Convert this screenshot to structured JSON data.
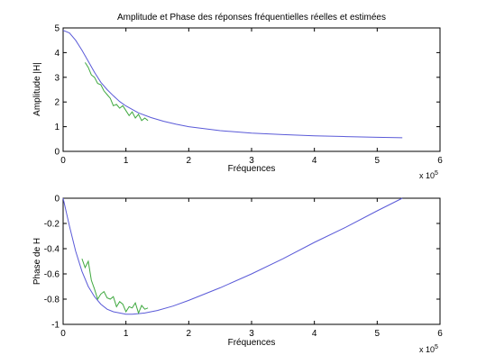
{
  "chart_data": [
    {
      "type": "line",
      "title": "Amplitude et Phase des réponses fréquentielles réelles et estimées",
      "xlabel": "Fréquences",
      "ylabel": "Amplitude |H|",
      "x_multiplier": "x 10",
      "x_multiplier_exp": "5",
      "xlim": [
        0,
        6
      ],
      "ylim": [
        0,
        5
      ],
      "xticks": [
        "0",
        "1",
        "2",
        "3",
        "4",
        "5",
        "6"
      ],
      "yticks": [
        "0",
        "1",
        "2",
        "3",
        "4",
        "5"
      ],
      "grid": false,
      "series": [
        {
          "color": "#5a5ad8",
          "x": [
            0,
            0.1,
            0.2,
            0.3,
            0.4,
            0.5,
            0.6,
            0.7,
            0.8,
            0.9,
            1.0,
            1.2,
            1.4,
            1.6,
            1.8,
            2.0,
            2.5,
            3.0,
            3.5,
            4.0,
            4.5,
            5.0,
            5.4
          ],
          "values": [
            4.9,
            4.8,
            4.5,
            4.1,
            3.65,
            3.2,
            2.8,
            2.5,
            2.25,
            2.02,
            1.84,
            1.56,
            1.37,
            1.22,
            1.1,
            1.0,
            0.84,
            0.74,
            0.68,
            0.63,
            0.6,
            0.57,
            0.55
          ]
        },
        {
          "color": "#3fa83f",
          "x": [
            0.35,
            0.4,
            0.45,
            0.5,
            0.55,
            0.6,
            0.65,
            0.7,
            0.75,
            0.8,
            0.85,
            0.9,
            0.95,
            1.0,
            1.05,
            1.1,
            1.15,
            1.2,
            1.25,
            1.3,
            1.35
          ],
          "values": [
            3.6,
            3.4,
            3.1,
            3.0,
            2.75,
            2.7,
            2.45,
            2.3,
            2.15,
            1.85,
            1.9,
            1.75,
            1.85,
            1.65,
            1.45,
            1.6,
            1.35,
            1.5,
            1.25,
            1.35,
            1.25
          ]
        }
      ]
    },
    {
      "type": "line",
      "title": "",
      "xlabel": "Fréquences",
      "ylabel": "Phase de H",
      "x_multiplier": "x 10",
      "x_multiplier_exp": "5",
      "xlim": [
        0,
        6
      ],
      "ylim": [
        -1,
        0
      ],
      "xticks": [
        "0",
        "1",
        "2",
        "3",
        "4",
        "5",
        "6"
      ],
      "yticks": [
        "-1",
        "-0.8",
        "-0.6",
        "-0.4",
        "-0.2",
        "0"
      ],
      "grid": false,
      "series": [
        {
          "color": "#5a5ad8",
          "x": [
            0,
            0.1,
            0.2,
            0.3,
            0.4,
            0.5,
            0.6,
            0.7,
            0.8,
            0.9,
            1.0,
            1.1,
            1.2,
            1.3,
            1.5,
            1.75,
            2.0,
            2.5,
            3.0,
            3.5,
            4.0,
            4.5,
            5.0,
            5.4
          ],
          "values": [
            0,
            -0.22,
            -0.42,
            -0.58,
            -0.7,
            -0.78,
            -0.84,
            -0.88,
            -0.9,
            -0.91,
            -0.92,
            -0.92,
            -0.915,
            -0.91,
            -0.89,
            -0.855,
            -0.81,
            -0.71,
            -0.6,
            -0.48,
            -0.35,
            -0.23,
            -0.1,
            0
          ]
        },
        {
          "color": "#3fa83f",
          "x": [
            0.3,
            0.35,
            0.4,
            0.45,
            0.5,
            0.55,
            0.6,
            0.65,
            0.7,
            0.75,
            0.8,
            0.85,
            0.9,
            0.95,
            1.0,
            1.05,
            1.1,
            1.15,
            1.2,
            1.25,
            1.3,
            1.35
          ],
          "values": [
            -0.48,
            -0.55,
            -0.5,
            -0.65,
            -0.72,
            -0.8,
            -0.76,
            -0.74,
            -0.79,
            -0.8,
            -0.78,
            -0.86,
            -0.82,
            -0.84,
            -0.9,
            -0.86,
            -0.87,
            -0.83,
            -0.91,
            -0.85,
            -0.88,
            -0.87
          ]
        }
      ]
    }
  ]
}
